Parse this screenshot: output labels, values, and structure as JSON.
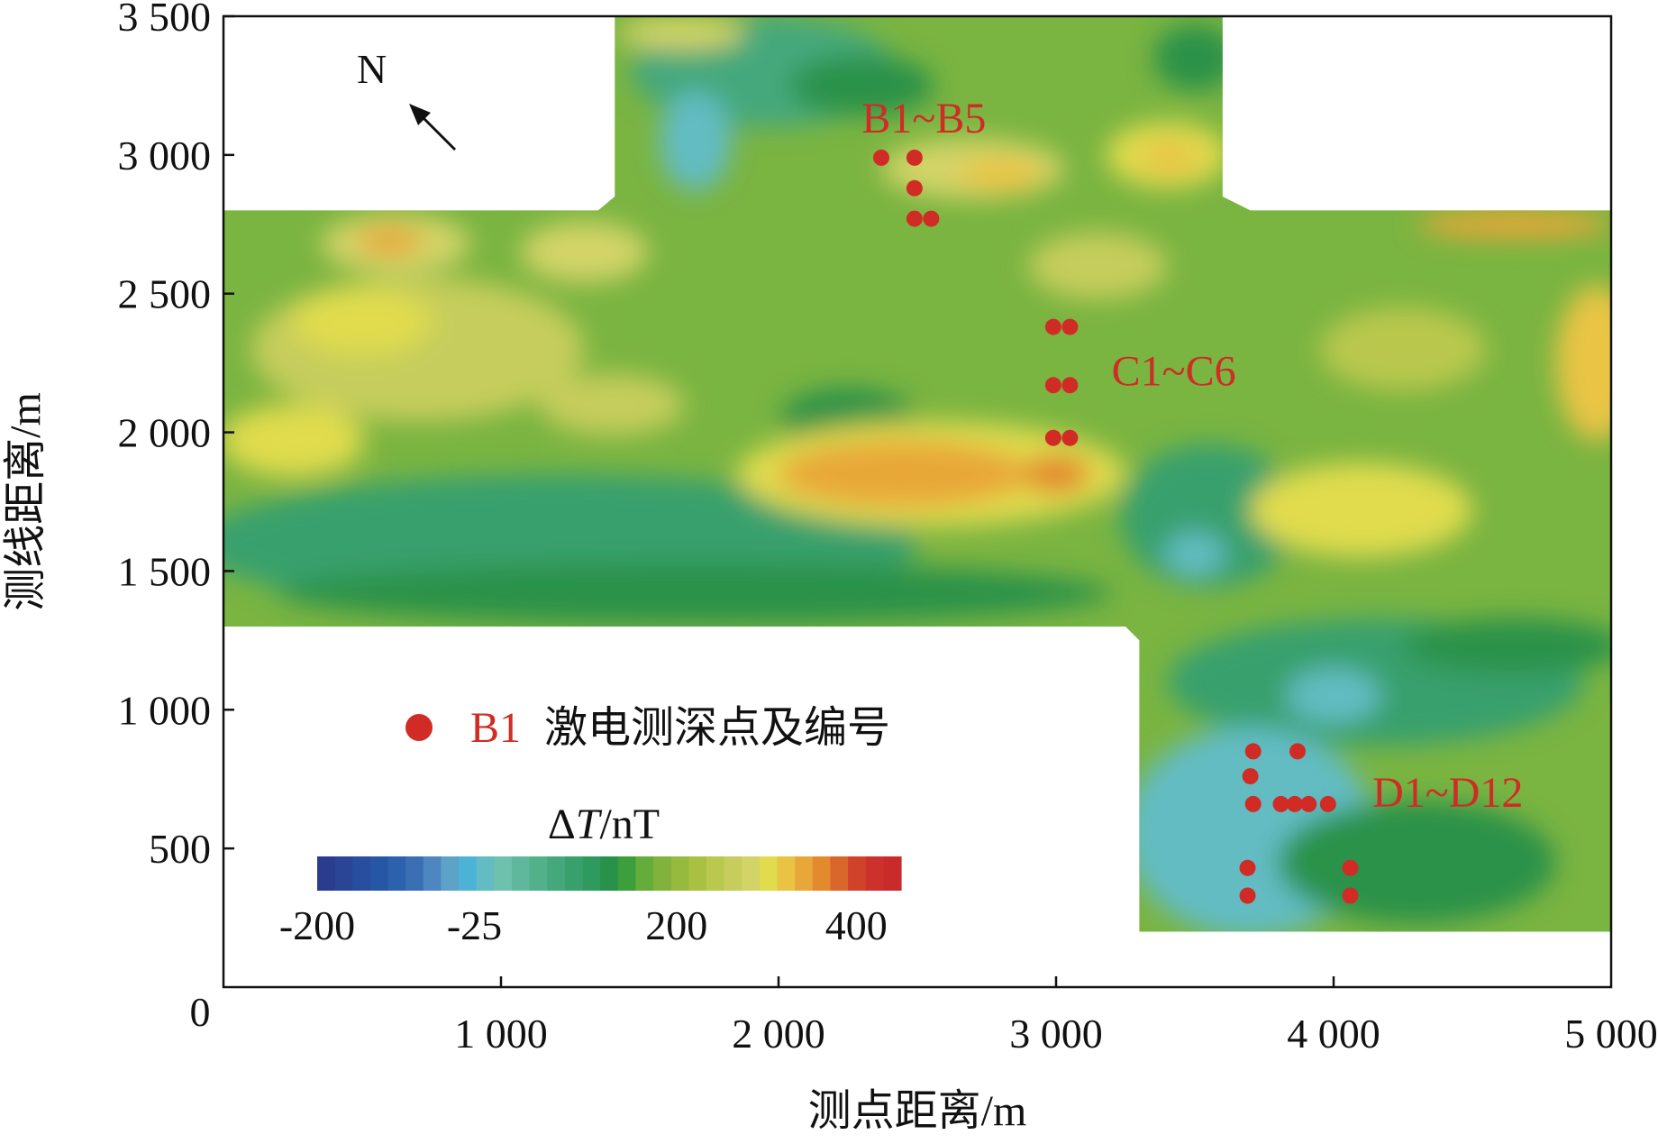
{
  "chart_data": {
    "type": "heatmap",
    "title": "",
    "xlabel": "测点距离/m",
    "ylabel": "测线距离/m",
    "xlim": [
      0,
      5000
    ],
    "ylim": [
      0,
      3500
    ],
    "x_ticks": [
      {
        "value": 0,
        "label": "0"
      },
      {
        "value": 1000,
        "label": "1 000"
      },
      {
        "value": 2000,
        "label": "2 000"
      },
      {
        "value": 3000,
        "label": "3 000"
      },
      {
        "value": 4000,
        "label": "4 000"
      },
      {
        "value": 5000,
        "label": "5 000"
      }
    ],
    "y_ticks": [
      {
        "value": 500,
        "label": "500"
      },
      {
        "value": 1000,
        "label": "1 000"
      },
      {
        "value": 1500,
        "label": "1 500"
      },
      {
        "value": 2000,
        "label": "2 000"
      },
      {
        "value": 2500,
        "label": "2 500"
      },
      {
        "value": 3000,
        "label": "3 000"
      },
      {
        "value": 3500,
        "label": "3 500"
      }
    ],
    "north_arrow": {
      "label": "N",
      "direction": "north-west"
    },
    "survey_outline": [
      [
        1410,
        3500
      ],
      [
        3600,
        3500
      ],
      [
        3600,
        2850
      ],
      [
        3700,
        2800
      ],
      [
        5000,
        2800
      ],
      [
        5000,
        200
      ],
      [
        3300,
        200
      ],
      [
        3300,
        1250
      ],
      [
        3250,
        1300
      ],
      [
        0,
        1300
      ],
      [
        0,
        2800
      ],
      [
        1350,
        2800
      ],
      [
        1410,
        2850
      ]
    ],
    "colorbar": {
      "title_prefix": "Δ",
      "title_var": "T",
      "title_unit": "/nT",
      "min": -200,
      "max": 450,
      "tick_labels": [
        {
          "value": -200,
          "label": "-200"
        },
        {
          "value": -25,
          "label": "-25"
        },
        {
          "value": 200,
          "label": "200"
        },
        {
          "value": 400,
          "label": "400"
        }
      ],
      "colors": [
        "#2b3c8e",
        "#2a4596",
        "#284e9f",
        "#2657a7",
        "#2c61ae",
        "#3a6fb6",
        "#4d86c0",
        "#5da2c7",
        "#4db3d6",
        "#62bcc2",
        "#6ec1ad",
        "#5fb89c",
        "#52b08b",
        "#45a87c",
        "#38a06d",
        "#2e9a5d",
        "#29924a",
        "#3d9f3c",
        "#64ad3a",
        "#81b33c",
        "#96ba3e",
        "#a9c043",
        "#b9c84e",
        "#c6cd5c",
        "#d3d467",
        "#e0dc4d",
        "#e9c444",
        "#e8a739",
        "#e3892e",
        "#d9662b",
        "#d1422a",
        "#cd312b",
        "#c92b2b"
      ]
    },
    "base_color": "#7ab441",
    "zones": [
      {
        "shape": "ellipse",
        "cx": 700,
        "cy": 2300,
        "rx": 600,
        "ry": 260,
        "color": "#c6cd5c"
      },
      {
        "shape": "ellipse",
        "cx": 250,
        "cy": 1970,
        "rx": 260,
        "ry": 130,
        "color": "#e0dc4d"
      },
      {
        "shape": "ellipse",
        "cx": 500,
        "cy": 2400,
        "rx": 250,
        "ry": 120,
        "color": "#e0dc4d"
      },
      {
        "shape": "ellipse",
        "cx": 620,
        "cy": 2680,
        "rx": 270,
        "ry": 110,
        "color": "#d3d467"
      },
      {
        "shape": "ellipse",
        "cx": 600,
        "cy": 2690,
        "rx": 120,
        "ry": 50,
        "color": "#e8a739"
      },
      {
        "shape": "ellipse",
        "cx": 1300,
        "cy": 2650,
        "rx": 230,
        "ry": 110,
        "color": "#d3d467"
      },
      {
        "shape": "ellipse",
        "cx": 1400,
        "cy": 2100,
        "rx": 260,
        "ry": 110,
        "color": "#c6cd5c"
      },
      {
        "shape": "ellipse",
        "cx": 1200,
        "cy": 1600,
        "rx": 1300,
        "ry": 250,
        "color": "#38a06d"
      },
      {
        "shape": "ellipse",
        "cx": 1700,
        "cy": 1420,
        "rx": 1500,
        "ry": 110,
        "color": "#29924a"
      },
      {
        "shape": "ellipse",
        "cx": 2250,
        "cy": 2050,
        "rx": 240,
        "ry": 110,
        "color": "#29924a"
      },
      {
        "shape": "ellipse",
        "cx": 1950,
        "cy": 3300,
        "rx": 480,
        "ry": 200,
        "color": "#45a87c"
      },
      {
        "shape": "ellipse",
        "cx": 1700,
        "cy": 3050,
        "rx": 130,
        "ry": 180,
        "color": "#62bcc2"
      },
      {
        "shape": "ellipse",
        "cx": 2300,
        "cy": 3250,
        "rx": 260,
        "ry": 110,
        "color": "#29924a"
      },
      {
        "shape": "ellipse",
        "cx": 1650,
        "cy": 3440,
        "rx": 230,
        "ry": 60,
        "color": "#d3d467"
      },
      {
        "shape": "ellipse",
        "cx": 2700,
        "cy": 2950,
        "rx": 330,
        "ry": 110,
        "color": "#d3d467"
      },
      {
        "shape": "ellipse",
        "cx": 2800,
        "cy": 2930,
        "rx": 150,
        "ry": 60,
        "color": "#e9c444"
      },
      {
        "shape": "ellipse",
        "cx": 3400,
        "cy": 3000,
        "rx": 220,
        "ry": 120,
        "color": "#e0dc4d"
      },
      {
        "shape": "ellipse",
        "cx": 3410,
        "cy": 2990,
        "rx": 110,
        "ry": 60,
        "color": "#e9c444"
      },
      {
        "shape": "ellipse",
        "cx": 3500,
        "cy": 3350,
        "rx": 150,
        "ry": 120,
        "color": "#29924a"
      },
      {
        "shape": "ellipse",
        "cx": 2550,
        "cy": 1850,
        "rx": 700,
        "ry": 190,
        "color": "#e0dc4d"
      },
      {
        "shape": "ellipse",
        "cx": 2450,
        "cy": 1850,
        "rx": 450,
        "ry": 120,
        "color": "#e8a739"
      },
      {
        "shape": "ellipse",
        "cx": 3000,
        "cy": 1850,
        "rx": 120,
        "ry": 70,
        "color": "#e3892e"
      },
      {
        "shape": "ellipse",
        "cx": 3150,
        "cy": 2600,
        "rx": 250,
        "ry": 120,
        "color": "#c6cd5c"
      },
      {
        "shape": "ellipse",
        "cx": 4650,
        "cy": 2750,
        "rx": 350,
        "ry": 50,
        "color": "#e8a739"
      },
      {
        "shape": "ellipse",
        "cx": 4950,
        "cy": 2250,
        "rx": 150,
        "ry": 280,
        "color": "#e9c444"
      },
      {
        "shape": "ellipse",
        "cx": 4250,
        "cy": 2300,
        "rx": 300,
        "ry": 150,
        "color": "#b9c84e"
      },
      {
        "shape": "ellipse",
        "cx": 3550,
        "cy": 1700,
        "rx": 320,
        "ry": 260,
        "color": "#38a06d"
      },
      {
        "shape": "ellipse",
        "cx": 4100,
        "cy": 1720,
        "rx": 400,
        "ry": 170,
        "color": "#e0dc4d"
      },
      {
        "shape": "ellipse",
        "cx": 3500,
        "cy": 1560,
        "rx": 110,
        "ry": 80,
        "color": "#62bcc2"
      },
      {
        "shape": "ellipse",
        "cx": 4150,
        "cy": 1100,
        "rx": 750,
        "ry": 230,
        "color": "#38a06d"
      },
      {
        "shape": "ellipse",
        "cx": 4000,
        "cy": 1050,
        "rx": 170,
        "ry": 100,
        "color": "#62bcc2"
      },
      {
        "shape": "ellipse",
        "cx": 3700,
        "cy": 560,
        "rx": 450,
        "ry": 380,
        "color": "#62bcc2"
      },
      {
        "shape": "ellipse",
        "cx": 4300,
        "cy": 450,
        "rx": 500,
        "ry": 220,
        "color": "#29924a"
      },
      {
        "shape": "ellipse",
        "cx": 4650,
        "cy": 1230,
        "rx": 400,
        "ry": 100,
        "color": "#29924a"
      }
    ],
    "groups": [
      {
        "name": "B1~B5",
        "label_pos": [
          2300,
          3080
        ],
        "points": [
          [
            2370,
            2990
          ],
          [
            2490,
            2990
          ],
          [
            2490,
            2880
          ],
          [
            2490,
            2770
          ],
          [
            2550,
            2770
          ]
        ]
      },
      {
        "name": "C1~C6",
        "label_pos": [
          3200,
          2170
        ],
        "points": [
          [
            2990,
            2380
          ],
          [
            3050,
            2380
          ],
          [
            2990,
            2170
          ],
          [
            3050,
            2170
          ],
          [
            2990,
            1980
          ],
          [
            3050,
            1980
          ]
        ]
      },
      {
        "name": "D1~D12",
        "label_pos": [
          4140,
          650
        ],
        "points": [
          [
            3710,
            850
          ],
          [
            3870,
            850
          ],
          [
            3700,
            760
          ],
          [
            3710,
            660
          ],
          [
            3810,
            660
          ],
          [
            3860,
            660
          ],
          [
            3910,
            660
          ],
          [
            3980,
            660
          ],
          [
            3690,
            430
          ],
          [
            3690,
            330
          ],
          [
            4060,
            430
          ],
          [
            4060,
            330
          ]
        ]
      }
    ],
    "legend": {
      "code": "B1",
      "text": "激电测深点及编号"
    }
  }
}
